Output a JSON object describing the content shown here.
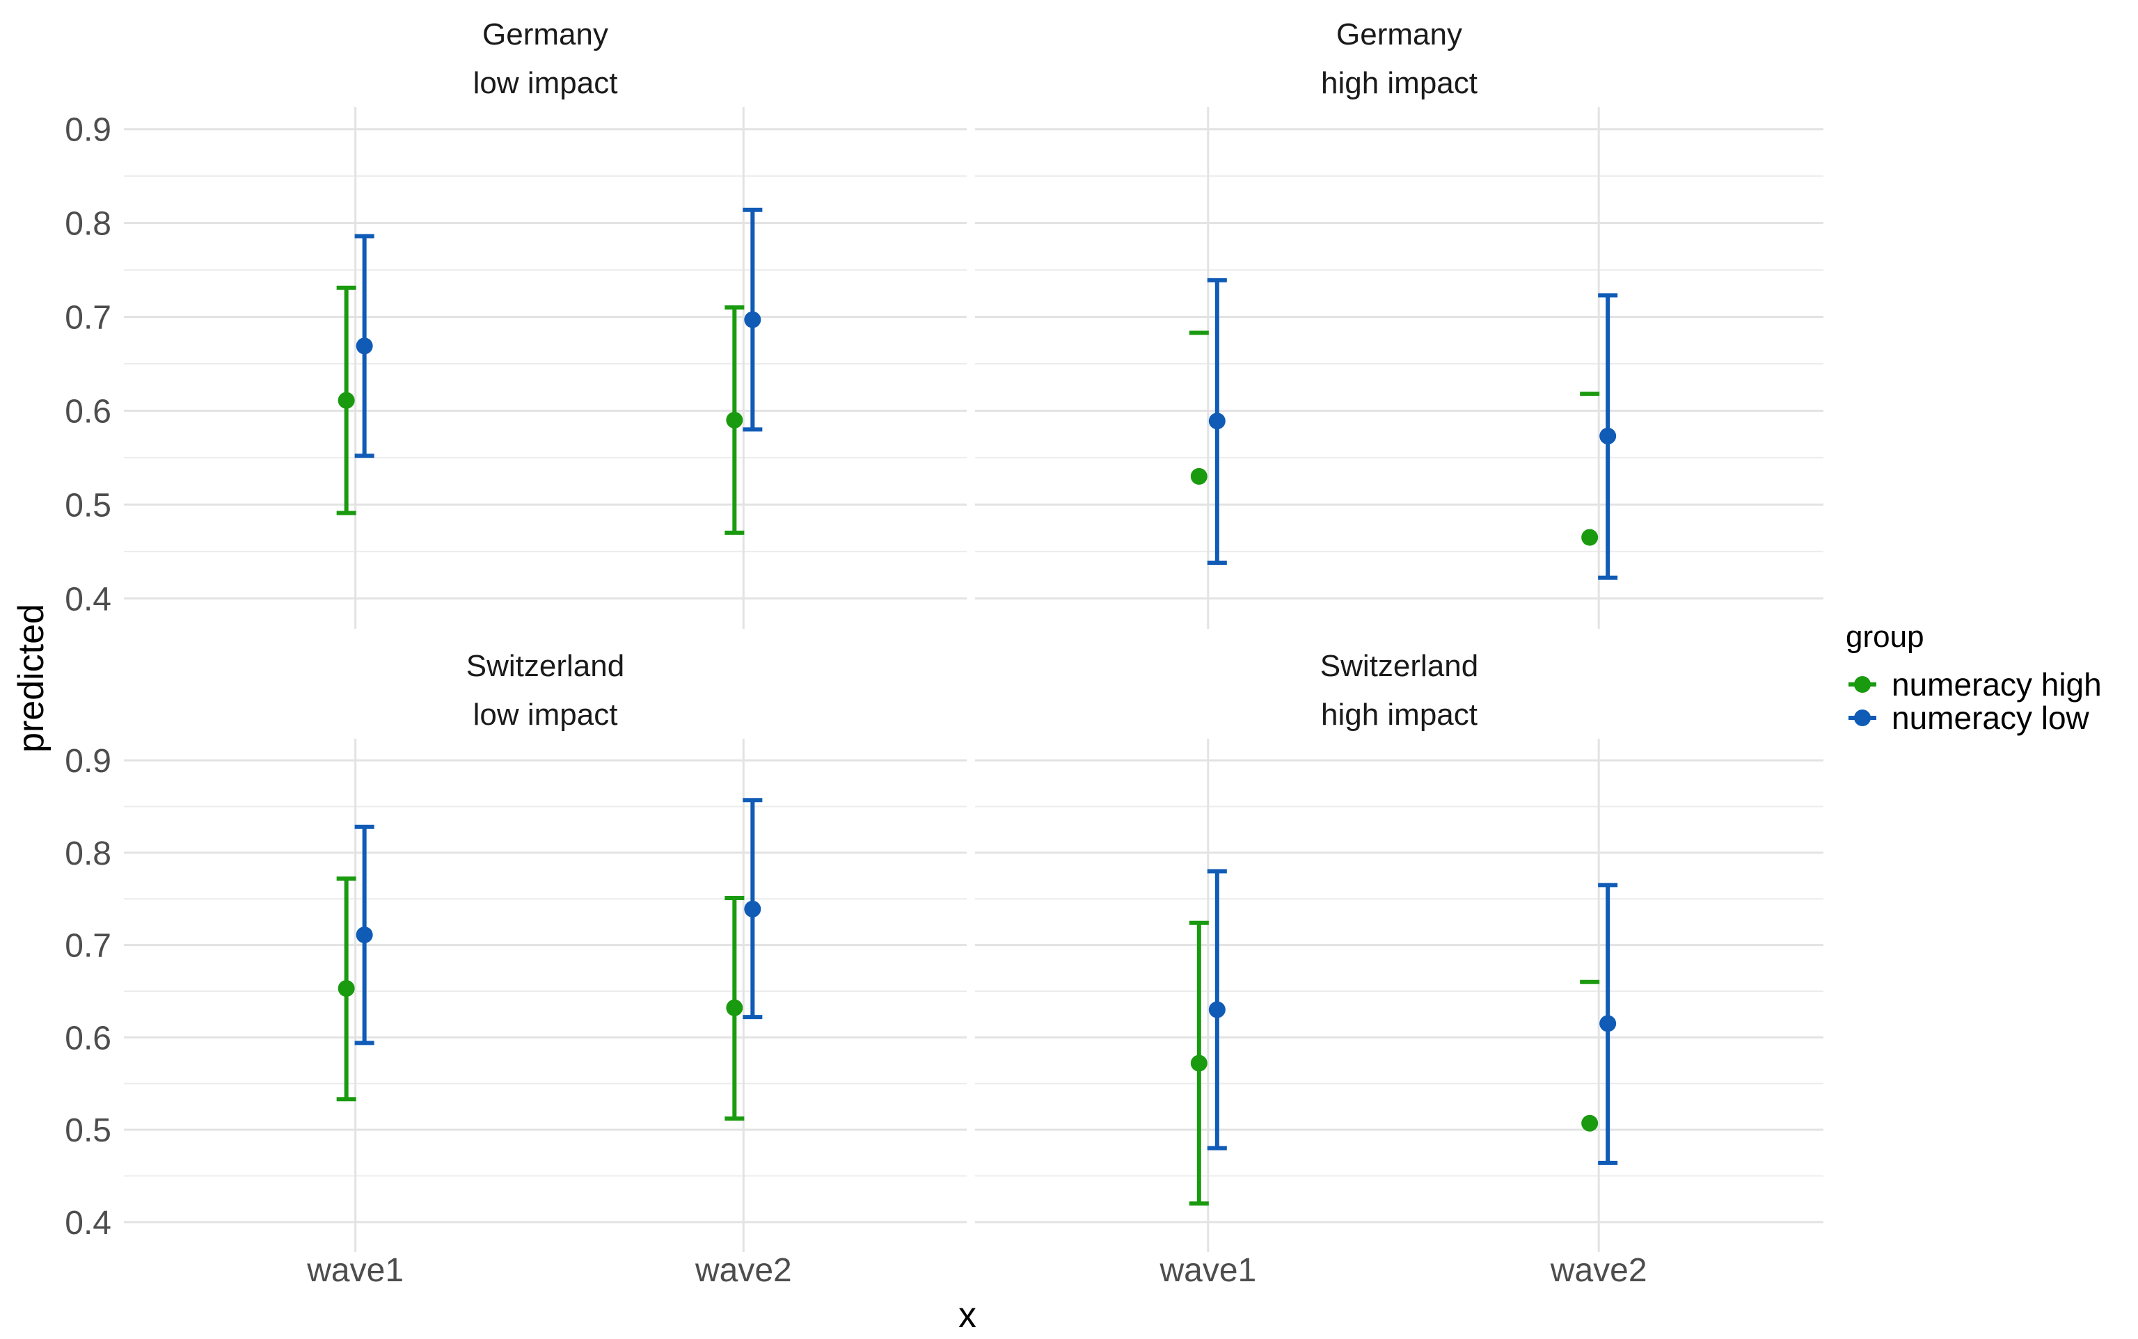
{
  "chart_data": {
    "type": "scatter",
    "subtype": "point-errorbar",
    "xlabel": "x",
    "ylabel": "predicted",
    "ylim": [
      0.375,
      0.925
    ],
    "yticks": [
      0.4,
      0.5,
      0.6,
      0.7,
      0.8,
      0.9
    ],
    "categories": [
      "wave1",
      "wave2"
    ],
    "grid": true,
    "legend": {
      "title": "group",
      "position": "right",
      "entries": [
        {
          "name": "numeracy high",
          "color": "#1a9a0f"
        },
        {
          "name": "numeracy low",
          "color": "#0f5bb6"
        }
      ]
    },
    "panels": [
      {
        "country": "Germany",
        "impact": "low impact",
        "series": [
          {
            "name": "numeracy high",
            "values": [
              {
                "x": "wave1",
                "y": 0.611,
                "lower": 0.491,
                "upper": 0.731
              },
              {
                "x": "wave2",
                "y": 0.59,
                "lower": 0.47,
                "upper": 0.71
              }
            ]
          },
          {
            "name": "numeracy low",
            "values": [
              {
                "x": "wave1",
                "y": 0.669,
                "lower": 0.552,
                "upper": 0.786
              },
              {
                "x": "wave2",
                "y": 0.697,
                "lower": 0.58,
                "upper": 0.814
              }
            ]
          }
        ]
      },
      {
        "country": "Germany",
        "impact": "high impact",
        "series": [
          {
            "name": "numeracy high",
            "values": [
              {
                "x": "wave1",
                "y": 0.53,
                "lower": null,
                "upper": 0.683
              },
              {
                "x": "wave2",
                "y": 0.465,
                "lower": null,
                "upper": 0.618
              }
            ]
          },
          {
            "name": "numeracy low",
            "values": [
              {
                "x": "wave1",
                "y": 0.589,
                "lower": 0.438,
                "upper": 0.739
              },
              {
                "x": "wave2",
                "y": 0.573,
                "lower": 0.422,
                "upper": 0.723
              }
            ]
          }
        ]
      },
      {
        "country": "Switzerland",
        "impact": "low impact",
        "series": [
          {
            "name": "numeracy high",
            "values": [
              {
                "x": "wave1",
                "y": 0.653,
                "lower": 0.533,
                "upper": 0.772
              },
              {
                "x": "wave2",
                "y": 0.632,
                "lower": 0.512,
                "upper": 0.751
              }
            ]
          },
          {
            "name": "numeracy low",
            "values": [
              {
                "x": "wave1",
                "y": 0.711,
                "lower": 0.594,
                "upper": 0.828
              },
              {
                "x": "wave2",
                "y": 0.739,
                "lower": 0.622,
                "upper": 0.857
              }
            ]
          }
        ]
      },
      {
        "country": "Switzerland",
        "impact": "high impact",
        "series": [
          {
            "name": "numeracy high",
            "values": [
              {
                "x": "wave1",
                "y": 0.572,
                "lower": 0.42,
                "upper": 0.724
              },
              {
                "x": "wave2",
                "y": 0.507,
                "lower": null,
                "upper": 0.66
              }
            ]
          },
          {
            "name": "numeracy low",
            "values": [
              {
                "x": "wave1",
                "y": 0.63,
                "lower": 0.48,
                "upper": 0.78
              },
              {
                "x": "wave2",
                "y": 0.615,
                "lower": 0.464,
                "upper": 0.765
              }
            ]
          }
        ]
      }
    ]
  }
}
